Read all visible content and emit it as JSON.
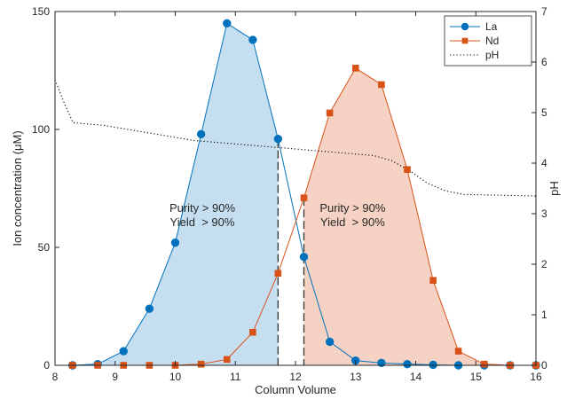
{
  "chart_data": {
    "type": "line",
    "xlabel": "Column Volume",
    "ylabel_left": "Ion concentration (μM)",
    "ylabel_right": "pH",
    "xlim": [
      8,
      16
    ],
    "ylim_left": [
      0,
      150
    ],
    "ylim_right": [
      0,
      7
    ],
    "xticks": [
      8,
      9,
      10,
      11,
      12,
      13,
      14,
      15,
      16
    ],
    "yticks_left": [
      0,
      50,
      100,
      150
    ],
    "yticks_right": [
      0,
      1,
      2,
      3,
      4,
      5,
      6,
      7
    ],
    "grid": false,
    "legend_position": "top-right",
    "colors": {
      "La": "#0072bd",
      "La_fill": "#c5dff0",
      "Nd": "#d95319",
      "Nd_fill": "#f6d2c4",
      "pH": "#000000",
      "cut": "#333333"
    },
    "series": [
      {
        "name": "La",
        "marker": "circle",
        "x": [
          8.29,
          8.71,
          9.14,
          9.57,
          10.0,
          10.43,
          10.86,
          11.29,
          11.71,
          12.14,
          12.57,
          13.0,
          13.43,
          13.86,
          14.29,
          14.71,
          15.14,
          15.57,
          16.0
        ],
        "y": [
          0,
          0.5,
          6,
          24,
          52,
          98,
          145,
          138,
          96,
          46,
          10,
          2,
          1,
          0.5,
          0.2,
          0,
          0,
          0,
          0
        ]
      },
      {
        "name": "Nd",
        "marker": "square",
        "x": [
          8.29,
          8.71,
          9.14,
          9.57,
          10.0,
          10.43,
          10.86,
          11.29,
          11.71,
          12.14,
          12.57,
          13.0,
          13.43,
          13.86,
          14.29,
          14.71,
          15.14,
          15.57,
          16.0
        ],
        "y": [
          0,
          0,
          0,
          0,
          0,
          0.5,
          2.5,
          14,
          39,
          71,
          107,
          126,
          119,
          83,
          36,
          6,
          0.5,
          0,
          0
        ]
      },
      {
        "name": "pH",
        "axis": "right",
        "style": "dotted",
        "x": [
          8.0,
          8.15,
          8.3,
          8.8,
          9.3,
          9.8,
          10.3,
          10.8,
          11.3,
          11.8,
          12.3,
          12.8,
          13.3,
          13.6,
          13.9,
          14.2,
          14.5,
          14.8,
          15.2,
          15.6,
          16.0
        ],
        "y": [
          5.65,
          5.2,
          4.8,
          4.75,
          4.65,
          4.55,
          4.45,
          4.4,
          4.35,
          4.3,
          4.25,
          4.2,
          4.15,
          4.05,
          3.85,
          3.6,
          3.45,
          3.38,
          3.37,
          3.36,
          3.35
        ]
      }
    ],
    "cut_lines_x": [
      11.71,
      12.14
    ],
    "annotations": [
      {
        "line1": "Purity > 90%",
        "line2": "Yield  > 90%",
        "x": 10.45,
        "y": 65
      },
      {
        "line1": "Purity > 90%",
        "line2": "Yield  > 90%",
        "x": 12.95,
        "y": 65
      }
    ]
  }
}
